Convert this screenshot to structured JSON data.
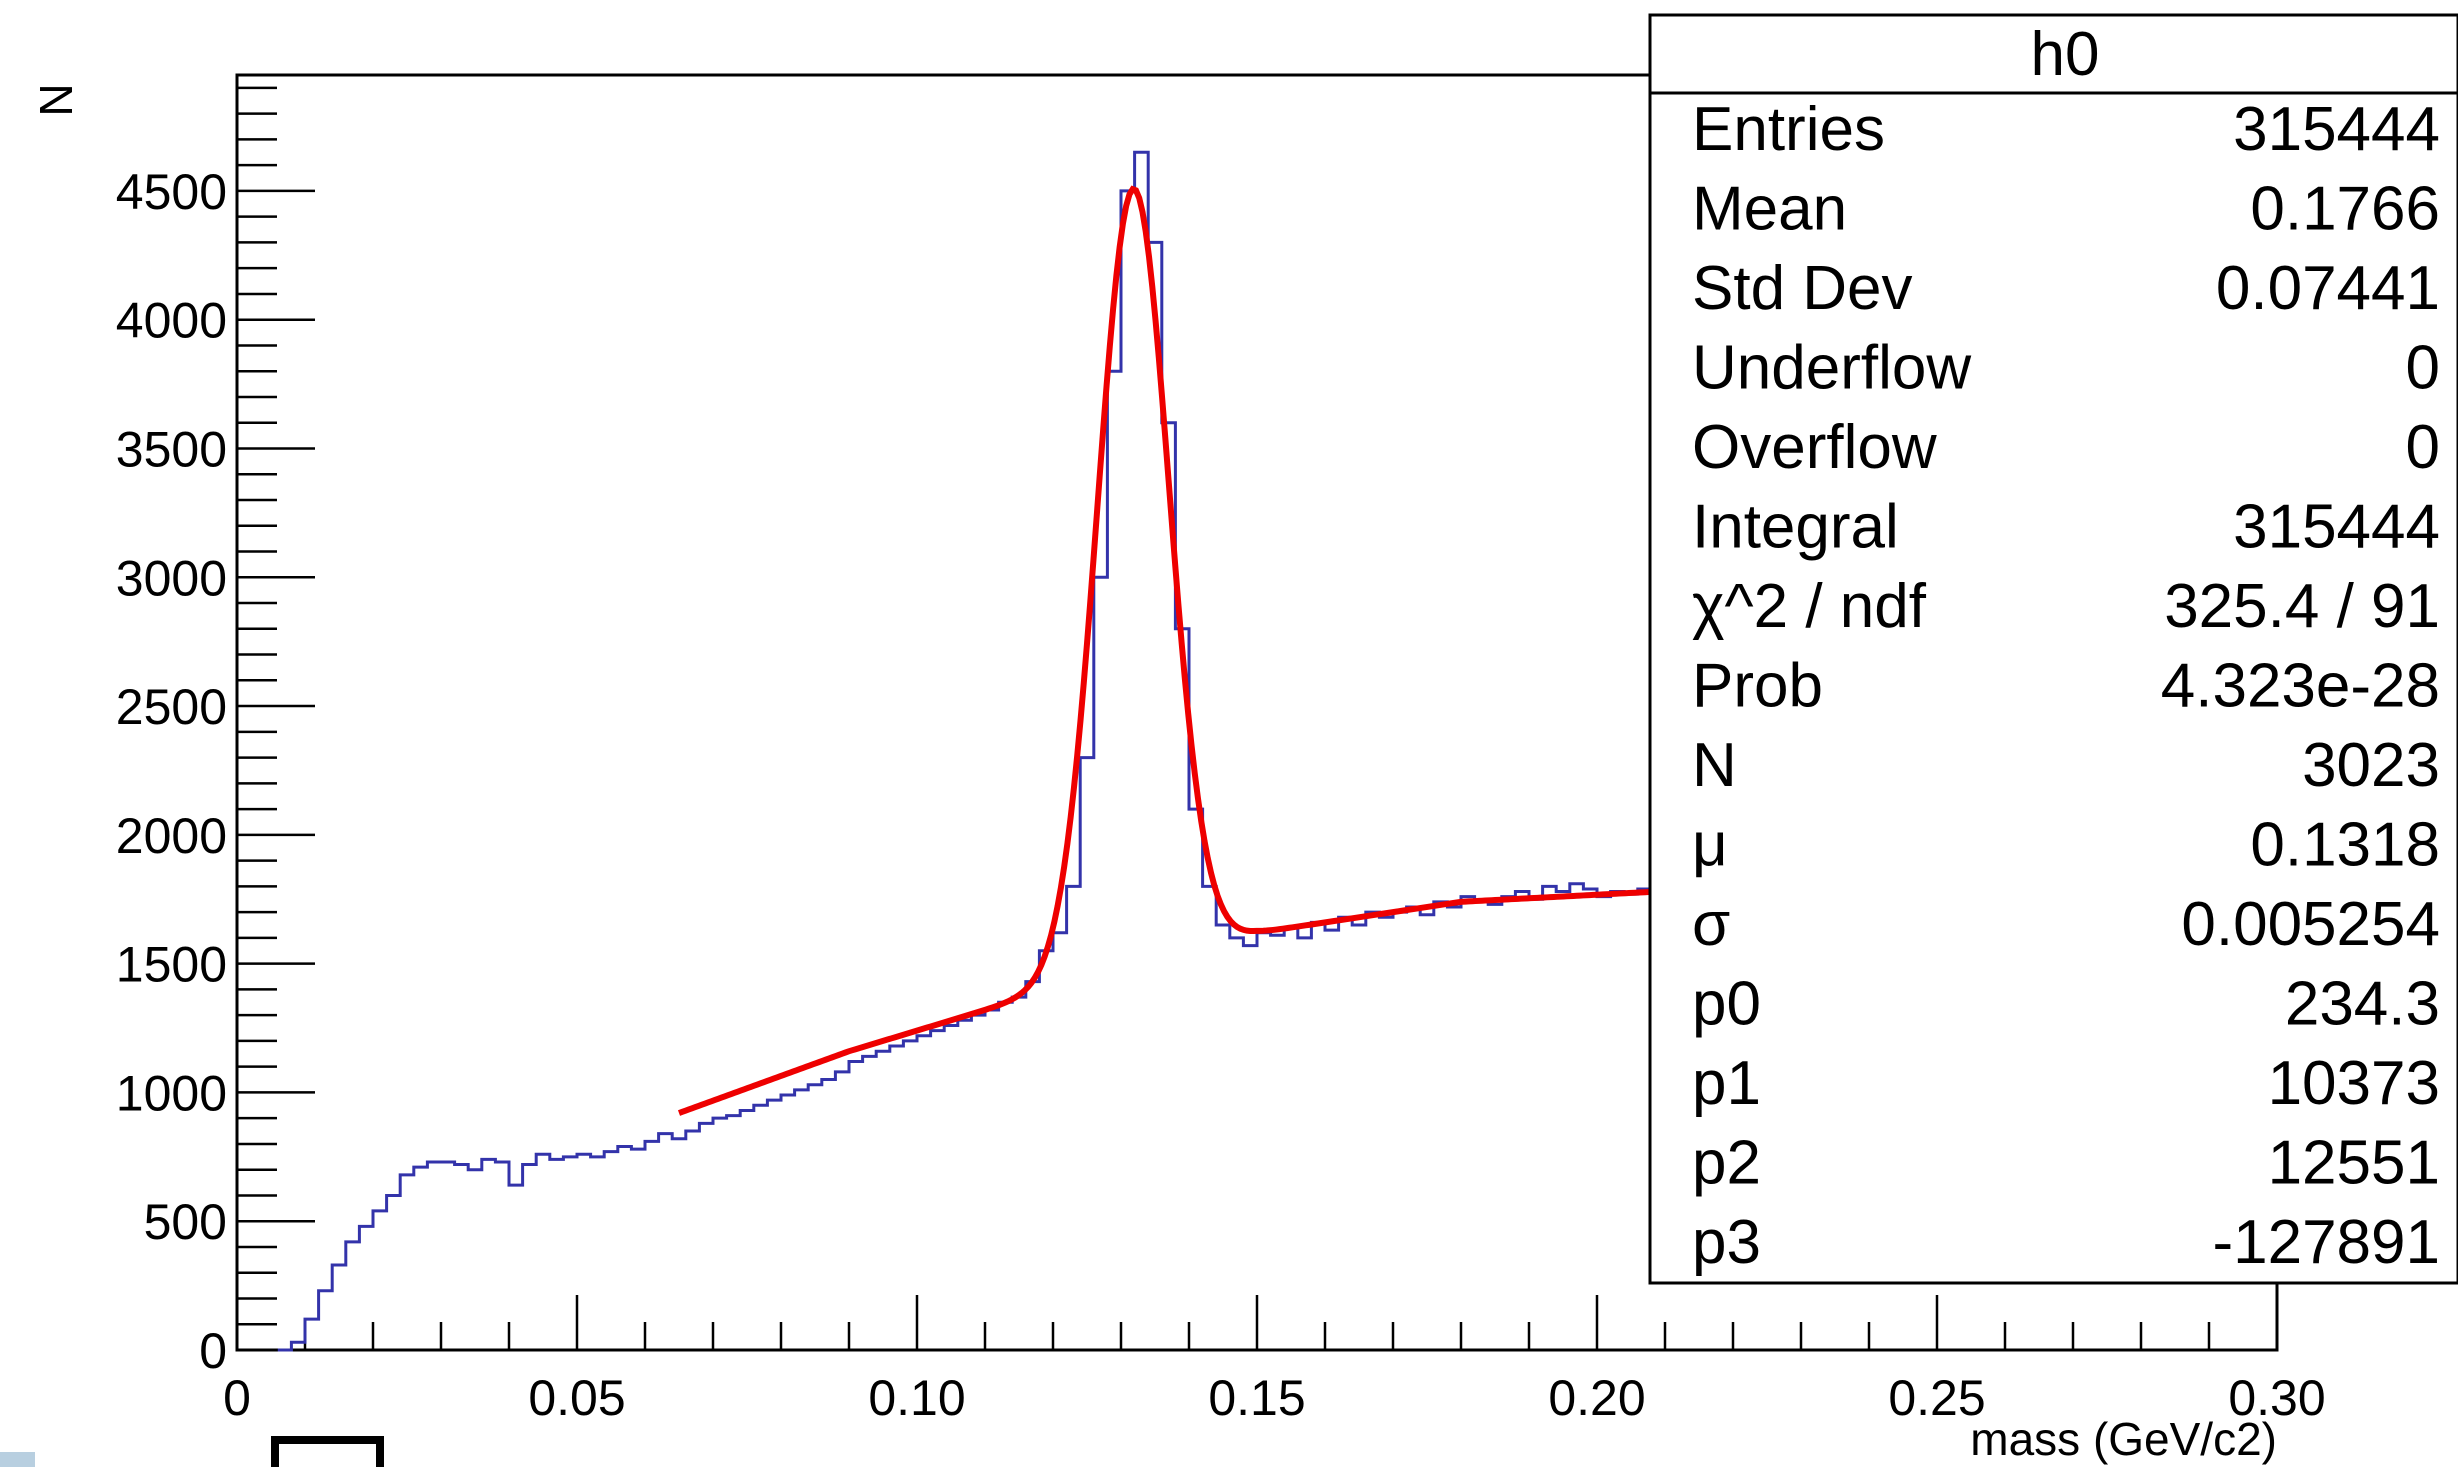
{
  "chart_data": {
    "type": "histogram",
    "xlabel": "mass (GeV/c2)",
    "ylabel": "N",
    "xlim": [
      0,
      0.3
    ],
    "ylim": [
      0,
      4950
    ],
    "x_ticks": [
      "0",
      "0.05",
      "0.10",
      "0.15",
      "0.20",
      "0.25",
      "0.30"
    ],
    "y_ticks": [
      "0",
      "500",
      "1000",
      "1500",
      "2000",
      "2500",
      "3000",
      "3500",
      "4000",
      "4500"
    ],
    "histogram_color": "#3333aa",
    "fit_color": "#ee0000",
    "histogram_points": [
      [
        0.006,
        0
      ],
      [
        0.008,
        30
      ],
      [
        0.01,
        120
      ],
      [
        0.012,
        230
      ],
      [
        0.014,
        330
      ],
      [
        0.016,
        420
      ],
      [
        0.018,
        480
      ],
      [
        0.02,
        540
      ],
      [
        0.022,
        600
      ],
      [
        0.024,
        680
      ],
      [
        0.026,
        710
      ],
      [
        0.028,
        730
      ],
      [
        0.03,
        730
      ],
      [
        0.032,
        720
      ],
      [
        0.034,
        700
      ],
      [
        0.036,
        740
      ],
      [
        0.038,
        730
      ],
      [
        0.04,
        640
      ],
      [
        0.042,
        720
      ],
      [
        0.044,
        760
      ],
      [
        0.046,
        740
      ],
      [
        0.048,
        750
      ],
      [
        0.05,
        760
      ],
      [
        0.052,
        750
      ],
      [
        0.054,
        770
      ],
      [
        0.056,
        790
      ],
      [
        0.058,
        780
      ],
      [
        0.06,
        810
      ],
      [
        0.062,
        840
      ],
      [
        0.064,
        820
      ],
      [
        0.066,
        850
      ],
      [
        0.068,
        880
      ],
      [
        0.07,
        900
      ],
      [
        0.072,
        910
      ],
      [
        0.074,
        930
      ],
      [
        0.076,
        950
      ],
      [
        0.078,
        970
      ],
      [
        0.08,
        990
      ],
      [
        0.082,
        1010
      ],
      [
        0.084,
        1030
      ],
      [
        0.086,
        1050
      ],
      [
        0.088,
        1080
      ],
      [
        0.09,
        1120
      ],
      [
        0.092,
        1140
      ],
      [
        0.094,
        1160
      ],
      [
        0.096,
        1180
      ],
      [
        0.098,
        1200
      ],
      [
        0.1,
        1220
      ],
      [
        0.102,
        1240
      ],
      [
        0.104,
        1260
      ],
      [
        0.106,
        1280
      ],
      [
        0.108,
        1300
      ],
      [
        0.11,
        1320
      ],
      [
        0.112,
        1350
      ],
      [
        0.114,
        1370
      ],
      [
        0.116,
        1430
      ],
      [
        0.118,
        1550
      ],
      [
        0.12,
        1620
      ],
      [
        0.122,
        1800
      ],
      [
        0.124,
        2300
      ],
      [
        0.126,
        3000
      ],
      [
        0.128,
        3800
      ],
      [
        0.13,
        4500
      ],
      [
        0.132,
        4650
      ],
      [
        0.134,
        4300
      ],
      [
        0.136,
        3600
      ],
      [
        0.138,
        2800
      ],
      [
        0.14,
        2100
      ],
      [
        0.142,
        1800
      ],
      [
        0.144,
        1650
      ],
      [
        0.146,
        1600
      ],
      [
        0.148,
        1570
      ],
      [
        0.15,
        1620
      ],
      [
        0.152,
        1610
      ],
      [
        0.154,
        1640
      ],
      [
        0.156,
        1600
      ],
      [
        0.158,
        1660
      ],
      [
        0.16,
        1630
      ],
      [
        0.162,
        1680
      ],
      [
        0.164,
        1650
      ],
      [
        0.166,
        1700
      ],
      [
        0.168,
        1680
      ],
      [
        0.17,
        1700
      ],
      [
        0.172,
        1720
      ],
      [
        0.174,
        1690
      ],
      [
        0.176,
        1740
      ],
      [
        0.178,
        1720
      ],
      [
        0.18,
        1760
      ],
      [
        0.182,
        1740
      ],
      [
        0.184,
        1730
      ],
      [
        0.186,
        1760
      ],
      [
        0.188,
        1780
      ],
      [
        0.19,
        1750
      ],
      [
        0.192,
        1800
      ],
      [
        0.194,
        1780
      ],
      [
        0.196,
        1810
      ],
      [
        0.198,
        1790
      ],
      [
        0.2,
        1760
      ],
      [
        0.202,
        1780
      ],
      [
        0.204,
        1770
      ],
      [
        0.206,
        1790
      ],
      [
        0.208,
        1770
      ]
    ],
    "fit_curve": {
      "x_range": [
        0.065,
        0.209
      ],
      "peak": {
        "N": 3023,
        "mu": 0.1318,
        "sigma": 0.005254
      },
      "background_points": [
        [
          0.065,
          920
        ],
        [
          0.09,
          1160
        ],
        [
          0.115,
          1360
        ],
        [
          0.15,
          1620
        ],
        [
          0.18,
          1740
        ],
        [
          0.209,
          1780
        ]
      ]
    }
  },
  "stats_box": {
    "title": "h0",
    "rows": [
      {
        "label": "Entries",
        "value": "315444"
      },
      {
        "label": "Mean",
        "value": "0.1766"
      },
      {
        "label": "Std Dev",
        "value": "0.07441"
      },
      {
        "label": "Underflow",
        "value": "0"
      },
      {
        "label": "Overflow",
        "value": "0"
      },
      {
        "label": "Integral",
        "value": "315444"
      },
      {
        "label": "χ^2 / ndf",
        "value": "325.4 / 91"
      },
      {
        "label": "Prob",
        "value": "4.323e-28"
      },
      {
        "label": "N",
        "value": "3023"
      },
      {
        "label": "μ",
        "value": "0.1318"
      },
      {
        "label": "σ",
        "value": "0.005254"
      },
      {
        "label": "p0",
        "value": "234.3"
      },
      {
        "label": "p1",
        "value": "10373"
      },
      {
        "label": "p2",
        "value": "12551"
      },
      {
        "label": "p3",
        "value": "-127891"
      }
    ]
  }
}
